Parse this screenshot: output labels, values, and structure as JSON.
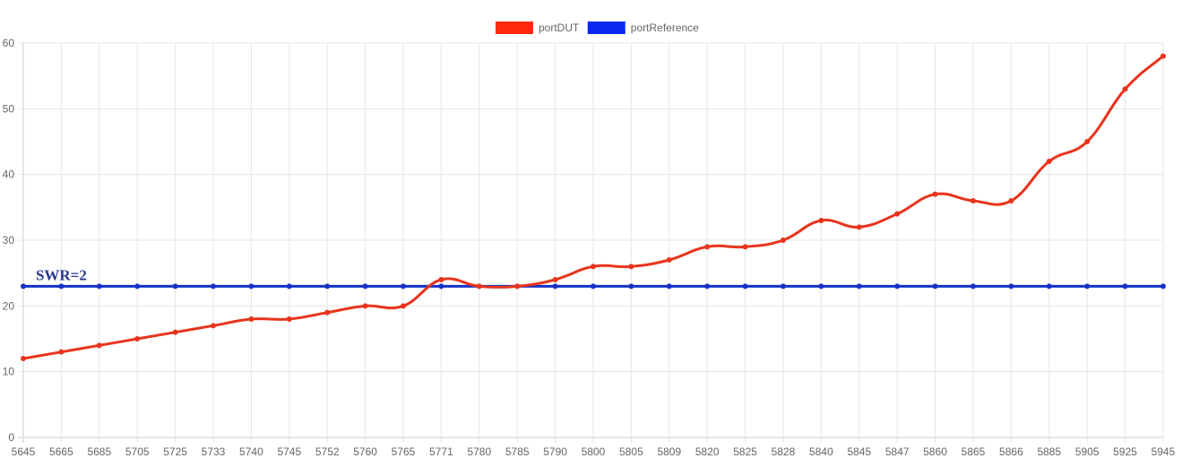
{
  "chart_data": {
    "type": "line",
    "title": "",
    "xlabel": "",
    "ylabel": "",
    "ylim": [
      0,
      60
    ],
    "yticks": [
      0,
      10,
      20,
      30,
      40,
      50,
      60
    ],
    "grid": true,
    "legend_position": "top-center",
    "categories": [
      "5645",
      "5665",
      "5685",
      "5705",
      "5725",
      "5733",
      "5740",
      "5745",
      "5752",
      "5760",
      "5765",
      "5771",
      "5780",
      "5785",
      "5790",
      "5800",
      "5805",
      "5809",
      "5820",
      "5825",
      "5828",
      "5840",
      "5845",
      "5847",
      "5860",
      "5865",
      "5866",
      "5885",
      "5905",
      "5925",
      "5945"
    ],
    "series": [
      {
        "name": "portDUT",
        "color": "#e8341c",
        "legend_color": "#ff2a0e",
        "values": [
          12,
          13,
          14,
          15,
          16,
          17,
          18,
          18,
          19,
          20,
          20,
          24,
          23,
          23,
          24,
          26,
          26,
          27,
          29,
          29,
          30,
          33,
          32,
          34,
          37,
          36,
          36,
          42,
          45,
          53,
          58
        ]
      },
      {
        "name": "portReference",
        "color": "#1432c8",
        "legend_color": "#0a28f0",
        "values": [
          23,
          23,
          23,
          23,
          23,
          23,
          23,
          23,
          23,
          23,
          23,
          23,
          23,
          23,
          23,
          23,
          23,
          23,
          23,
          23,
          23,
          23,
          23,
          23,
          23,
          23,
          23,
          23,
          23,
          23,
          23
        ]
      }
    ],
    "annotations": [
      {
        "text": "SWR=2",
        "x": "5665",
        "y": 23,
        "color": "#283a8c"
      }
    ],
    "styles": {
      "grid_color": "#e6e6e6",
      "axis_color": "#cccccc",
      "tick_text_color": "#666666"
    }
  }
}
